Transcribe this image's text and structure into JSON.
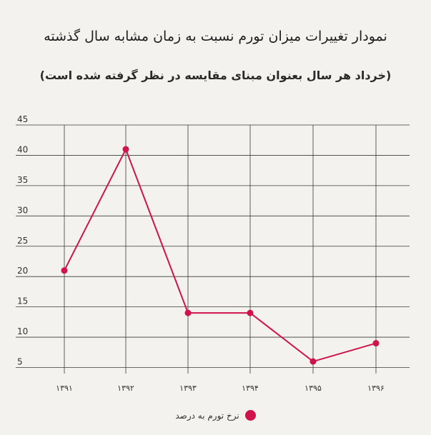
{
  "chart_data": {
    "type": "line",
    "title": "نمودار تغییرات میزان تورم نسبت به زمان مشابه سال گذشته",
    "subtitle": "(خرداد هر سال بعنوان مبنای مقایسه در نظر گرفته شده است)",
    "categories": [
      "۱۳۹۱",
      "۱۳۹۲",
      "۱۳۹۳",
      "۱۳۹۴",
      "۱۳۹۵",
      "۱۳۹۶"
    ],
    "series": [
      {
        "name": "نرخ تورم به درصد",
        "values": [
          21,
          41,
          14,
          14,
          6,
          9
        ],
        "color": "#d0134a"
      }
    ],
    "y_ticks": [
      5,
      10,
      15,
      20,
      25,
      30,
      35,
      40,
      45
    ],
    "ylim": [
      4,
      45
    ],
    "grid": true,
    "legend_position": "bottom-center"
  }
}
